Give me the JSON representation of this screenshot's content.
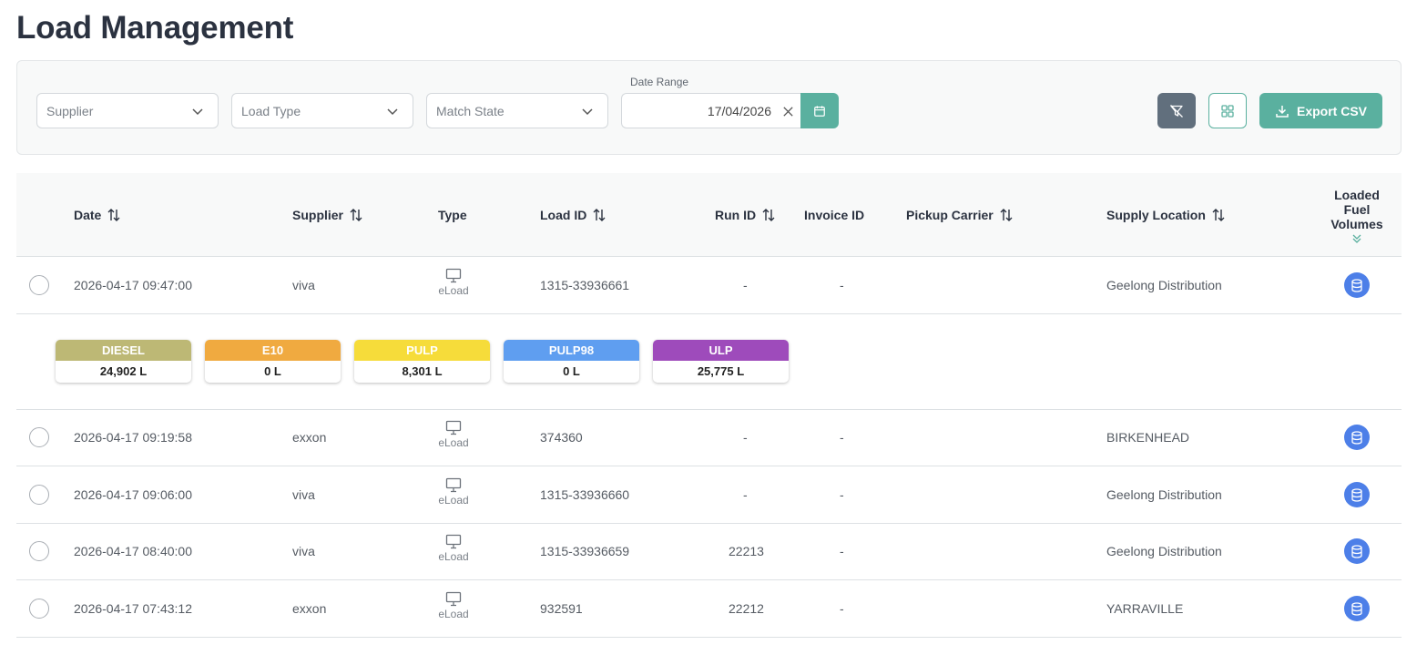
{
  "page": {
    "title": "Load Management"
  },
  "filters": {
    "supplier_placeholder": "Supplier",
    "load_type_placeholder": "Load Type",
    "match_state_placeholder": "Match State",
    "date_range_label": "Date Range",
    "date_value": "17/04/2026",
    "export_label": "Export CSV"
  },
  "colors": {
    "accent": "#5ab09f",
    "filter_button": "#616f7d",
    "db_icon": "#4d7fe8"
  },
  "table": {
    "headers": {
      "date": "Date",
      "supplier": "Supplier",
      "type": "Type",
      "load_id": "Load ID",
      "run_id": "Run ID",
      "invoice_id": "Invoice ID",
      "pickup_carrier": "Pickup Carrier",
      "supply_location": "Supply Location",
      "fuel_line1": "Loaded",
      "fuel_line2": "Fuel",
      "fuel_line3": "Volumes"
    },
    "rows": [
      {
        "date": "2026-04-17 09:47:00",
        "supplier": "viva",
        "type": "eLoad",
        "load_id": "1315-33936661",
        "run_id": "-",
        "invoice_id": "-",
        "pickup_carrier": "",
        "supply_location": "Geelong Distribution"
      },
      {
        "date": "2026-04-17 09:19:58",
        "supplier": "exxon",
        "type": "eLoad",
        "load_id": "374360",
        "run_id": "-",
        "invoice_id": "-",
        "pickup_carrier": "",
        "supply_location": "BIRKENHEAD"
      },
      {
        "date": "2026-04-17 09:06:00",
        "supplier": "viva",
        "type": "eLoad",
        "load_id": "1315-33936660",
        "run_id": "-",
        "invoice_id": "-",
        "pickup_carrier": "",
        "supply_location": "Geelong Distribution"
      },
      {
        "date": "2026-04-17 08:40:00",
        "supplier": "viva",
        "type": "eLoad",
        "load_id": "1315-33936659",
        "run_id": "22213",
        "invoice_id": "-",
        "pickup_carrier": "",
        "supply_location": "Geelong Distribution"
      },
      {
        "date": "2026-04-17 07:43:12",
        "supplier": "exxon",
        "type": "eLoad",
        "load_id": "932591",
        "run_id": "22212",
        "invoice_id": "-",
        "pickup_carrier": "",
        "supply_location": "YARRAVILLE"
      }
    ],
    "fuel_volumes": [
      {
        "name": "DIESEL",
        "value": "24,902 L",
        "color": "#bdb875"
      },
      {
        "name": "E10",
        "value": "0 L",
        "color": "#f0aa40"
      },
      {
        "name": "PULP",
        "value": "8,301 L",
        "color": "#f6dc3a"
      },
      {
        "name": "PULP98",
        "value": "0 L",
        "color": "#5f9ef0"
      },
      {
        "name": "ULP",
        "value": "25,775 L",
        "color": "#9e4bbb"
      }
    ]
  }
}
